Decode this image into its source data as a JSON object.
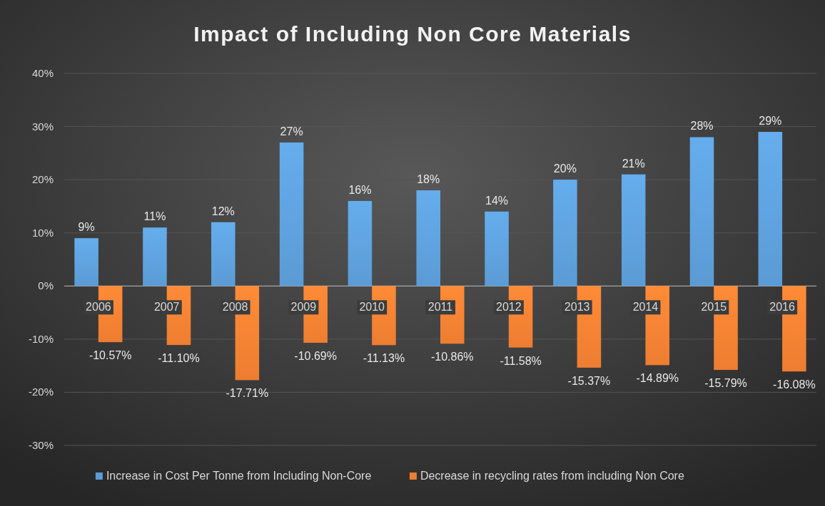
{
  "chart_data": {
    "type": "bar",
    "title": "Impact of Including  Non Core Materials",
    "categories": [
      "2006",
      "2007",
      "2008",
      "2009",
      "2010",
      "2011",
      "2012",
      "2013",
      "2014",
      "2015",
      "2016"
    ],
    "series": [
      {
        "name": "Increase in Cost Per Tonne from Including Non-Core",
        "color": "#5b9bd5",
        "values": [
          9,
          11,
          12,
          27,
          16,
          18,
          14,
          20,
          21,
          28,
          29
        ],
        "value_labels": [
          "9%",
          "11%",
          "12%",
          "27%",
          "16%",
          "18%",
          "14%",
          "20%",
          "21%",
          "28%",
          "29%"
        ]
      },
      {
        "name": "Decrease in recycling rates from including Non Core",
        "color": "#ed7d31",
        "values": [
          -10.57,
          -11.1,
          -17.71,
          -10.69,
          -11.13,
          -10.86,
          -11.58,
          -15.37,
          -14.89,
          -15.79,
          -16.08
        ],
        "value_labels": [
          "-10.57%",
          "-11.10%",
          "-17.71%",
          "-10.69%",
          "-11.13%",
          "-10.86%",
          "-11.58%",
          "-15.37%",
          "-14.89%",
          "-15.79%",
          "-16.08%"
        ]
      }
    ],
    "ylim": [
      -30,
      40
    ],
    "yticks": [
      {
        "value": -30,
        "label": "-30%"
      },
      {
        "value": -20,
        "label": "-20%"
      },
      {
        "value": -10,
        "label": "-10%"
      },
      {
        "value": 0,
        "label": "0%"
      },
      {
        "value": 10,
        "label": "10%"
      },
      {
        "value": 20,
        "label": "20%"
      },
      {
        "value": 30,
        "label": "30%"
      },
      {
        "value": 40,
        "label": "40%"
      }
    ],
    "grid": "y",
    "legend": "bottom"
  }
}
